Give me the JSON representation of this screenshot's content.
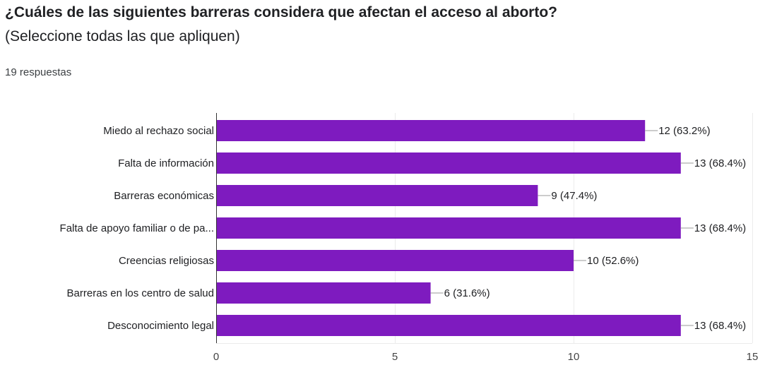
{
  "question": {
    "title": "¿Cuáles de las siguientes barreras considera que afectan el acceso al aborto?",
    "subtitle": "(Seleccione todas las que apliquen)",
    "responses": "19 respuestas"
  },
  "colors": {
    "bar": "#7e1bbf",
    "grid": "#ebebeb",
    "axis": "#333333",
    "leader": "#999999"
  },
  "chart_data": {
    "type": "bar",
    "orientation": "horizontal",
    "categories": [
      "Miedo al rechazo social",
      "Falta de información",
      "Barreras económicas",
      "Falta de apoyo familiar o de pa...",
      "Creencias religiosas",
      "Barreras en los centro de salud",
      "Desconocimiento legal"
    ],
    "values": [
      12,
      13,
      9,
      13,
      10,
      6,
      13
    ],
    "data_labels": [
      "12 (63.2%)",
      "13 (68.4%)",
      "9 (47.4%)",
      "13 (68.4%)",
      "10 (52.6%)",
      "6 (31.6%)",
      "13 (68.4%)"
    ],
    "xlim": [
      0,
      15
    ],
    "xticks": [
      0,
      5,
      10,
      15
    ],
    "xtick_labels": [
      "0",
      "5",
      "10",
      "15"
    ],
    "grid": true,
    "legend": "none"
  }
}
